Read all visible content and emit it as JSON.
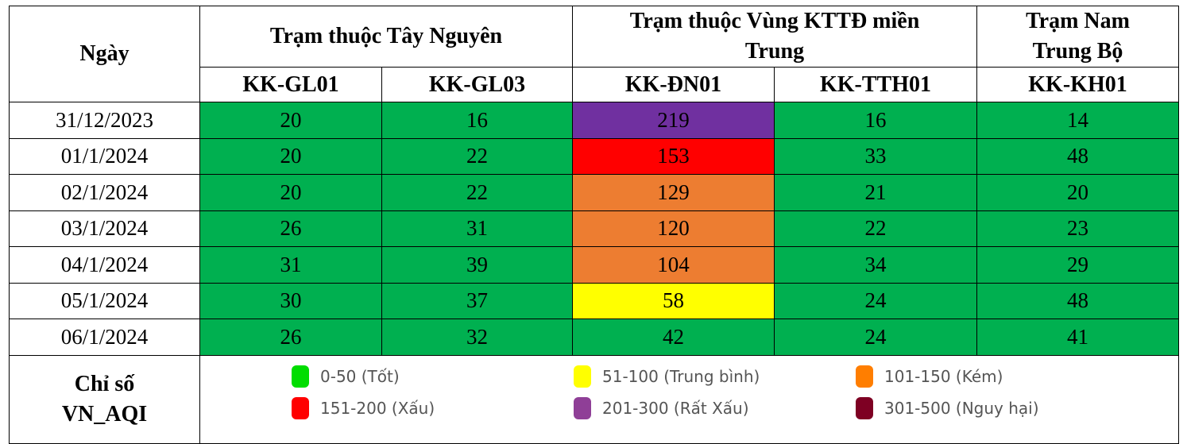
{
  "table": {
    "date_header": "Ngày",
    "groups": [
      {
        "label": "Trạm thuộc Tây Nguyên",
        "span": 2
      },
      {
        "label": "Trạm thuộc Vùng KTTĐ miền Trung",
        "span": 2
      },
      {
        "label": "Trạm Nam Trung Bộ",
        "span": 1
      }
    ],
    "stations": [
      "KK-GL01",
      "KK-GL03",
      "KK-ĐN01",
      "KK-TTH01",
      "KK-KH01"
    ],
    "rows": [
      {
        "date": "31/12/2023",
        "values": [
          "20",
          "16",
          "219",
          "16",
          "14"
        ],
        "colors": [
          "#00b050",
          "#00b050",
          "#7030a0",
          "#00b050",
          "#00b050"
        ]
      },
      {
        "date": "01/1/2024",
        "values": [
          "20",
          "22",
          "153",
          "33",
          "48"
        ],
        "colors": [
          "#00b050",
          "#00b050",
          "#ff0000",
          "#00b050",
          "#00b050"
        ]
      },
      {
        "date": "02/1/2024",
        "values": [
          "20",
          "22",
          "129",
          "21",
          "20"
        ],
        "colors": [
          "#00b050",
          "#00b050",
          "#ed7d31",
          "#00b050",
          "#00b050"
        ]
      },
      {
        "date": "03/1/2024",
        "values": [
          "26",
          "31",
          "120",
          "22",
          "23"
        ],
        "colors": [
          "#00b050",
          "#00b050",
          "#ed7d31",
          "#00b050",
          "#00b050"
        ]
      },
      {
        "date": "04/1/2024",
        "values": [
          "31",
          "39",
          "104",
          "34",
          "29"
        ],
        "colors": [
          "#00b050",
          "#00b050",
          "#ed7d31",
          "#00b050",
          "#00b050"
        ]
      },
      {
        "date": "05/1/2024",
        "values": [
          "30",
          "37",
          "58",
          "24",
          "48"
        ],
        "colors": [
          "#00b050",
          "#00b050",
          "#ffff00",
          "#00b050",
          "#00b050"
        ]
      },
      {
        "date": "06/1/2024",
        "values": [
          "26",
          "32",
          "42",
          "24",
          "41"
        ],
        "colors": [
          "#00b050",
          "#00b050",
          "#00b050",
          "#00b050",
          "#00b050"
        ]
      }
    ]
  },
  "legend": {
    "title_line1": "Chỉ số",
    "title_line2": "VN_AQI",
    "items": [
      {
        "label": "0-50 (Tốt)",
        "color": "#00dd00"
      },
      {
        "label": "51-100 (Trung bình)",
        "color": "#ffff00"
      },
      {
        "label": "101-150 (Kém)",
        "color": "#ff7e00"
      },
      {
        "label": "151-200 (Xấu)",
        "color": "#ff0000"
      },
      {
        "label": "201-300 (Rất Xấu)",
        "color": "#8f3f97"
      },
      {
        "label": "301-500 (Nguy hại)",
        "color": "#7e0023"
      }
    ]
  }
}
